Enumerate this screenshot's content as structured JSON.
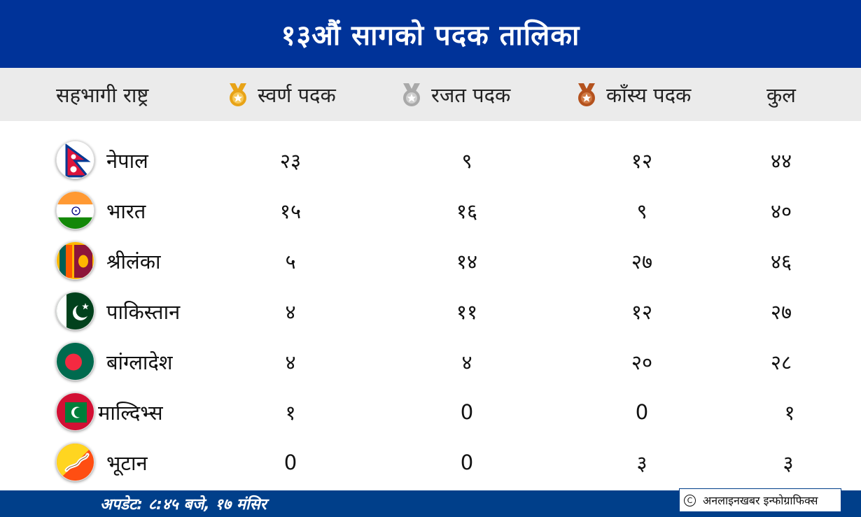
{
  "title": "१३औं सागको पदक तालिका",
  "headers": {
    "country": "सहभागी राष्ट्र",
    "gold": "स्वर्ण पदक",
    "silver": "रजत पदक",
    "bronze": "काँस्य पदक",
    "total": "कुल"
  },
  "medal_colors": {
    "gold": "#e8a317",
    "silver": "#a9a9a9",
    "bronze": "#b4521e"
  },
  "rows": [
    {
      "country": "नेपाल",
      "gold": "२३",
      "silver": "९",
      "bronze": "१२",
      "total": "४४",
      "flag_icon": "nepal-flag-icon"
    },
    {
      "country": "भारत",
      "gold": "१५",
      "silver": "१६",
      "bronze": "९",
      "total": "४०",
      "flag_icon": "india-flag-icon"
    },
    {
      "country": "श्रीलंका",
      "gold": "५",
      "silver": "१४",
      "bronze": "२७",
      "total": "४६",
      "flag_icon": "sri-lanka-flag-icon"
    },
    {
      "country": "पाकिस्तान",
      "gold": "४",
      "silver": "११",
      "bronze": "१२",
      "total": "२७",
      "flag_icon": "pakistan-flag-icon"
    },
    {
      "country": "बांग्लादेश",
      "gold": "४",
      "silver": "४",
      "bronze": "२०",
      "total": "२८",
      "flag_icon": "bangladesh-flag-icon"
    },
    {
      "country": "माल्दिभ्स",
      "gold": "१",
      "silver": "0",
      "bronze": "0",
      "total": "१",
      "flag_icon": "maldives-flag-icon"
    },
    {
      "country": "भूटान",
      "gold": "0",
      "silver": "0",
      "bronze": "३",
      "total": "३",
      "flag_icon": "bhutan-flag-icon"
    }
  ],
  "footer": {
    "update": "अपडेट: ८:४५ बजे, १७ मंसिर",
    "credit": "अनलाइनखबर इन्फोग्राफिक्स"
  }
}
